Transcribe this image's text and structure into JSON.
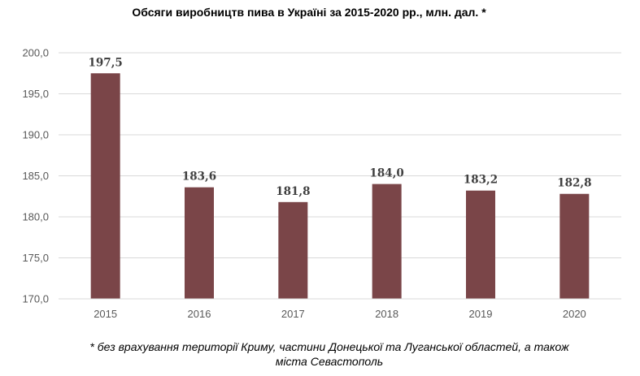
{
  "chart_data": {
    "type": "bar",
    "title": "Обсяги виробництв пива в Україні за 2015-2020 рр., млн. дал. *",
    "categories": [
      "2015",
      "2016",
      "2017",
      "2018",
      "2019",
      "2020"
    ],
    "values": [
      197.5,
      183.6,
      181.8,
      184.0,
      183.2,
      182.8
    ],
    "data_labels": [
      "197,5",
      "183,6",
      "181,8",
      "184,0",
      "183,2",
      "182,8"
    ],
    "ylim": [
      170,
      200
    ],
    "yticks": [
      170,
      175,
      180,
      185,
      190,
      195,
      200
    ],
    "ytick_labels": [
      "170,0",
      "175,0",
      "180,0",
      "185,0",
      "190,0",
      "195,0",
      "200,0"
    ],
    "grid": true,
    "legend": "none",
    "bar_color": "#7a4548",
    "grid_color": "#d9d9d9"
  },
  "footnote": {
    "line1": "* без врахування території Криму, частини Донецької та Луганської областей, а також",
    "line2": "міста Севастополь"
  }
}
